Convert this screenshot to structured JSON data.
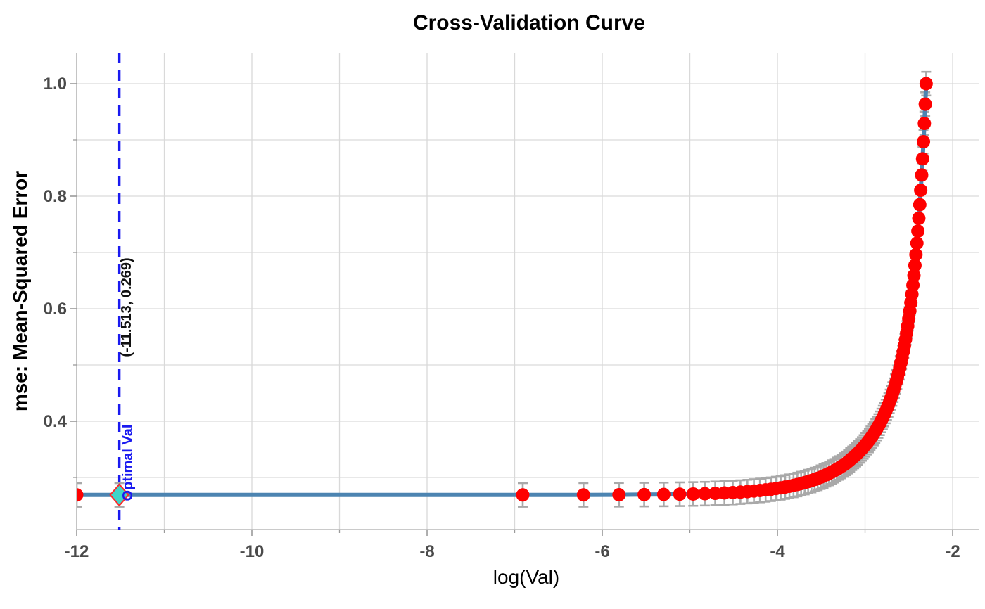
{
  "chart_data": {
    "type": "line",
    "title": "Cross-Validation Curve",
    "xlabel": "log(Val)",
    "ylabel": "mse: Mean-Squared Error",
    "grid": true,
    "legend": "none",
    "xlim": [
      -12.0,
      -1.695
    ],
    "ylim": [
      0.2075,
      1.055
    ],
    "x_ticks_major": [
      -12,
      -10,
      -8,
      -6,
      -4,
      -2
    ],
    "x_ticks_minor": [
      -11,
      -9,
      -7,
      -5,
      -3
    ],
    "y_ticks_major": [
      0.4,
      0.6,
      0.8,
      1.0
    ],
    "y_ticks_minor": [
      0.3,
      0.5,
      0.7,
      0.9
    ],
    "series": [
      {
        "name": "cv-mse-curve",
        "se": 0.021,
        "x": [
          -12.0,
          -11.513,
          -6.9078,
          -6.2146,
          -5.8091,
          -5.5215,
          -5.2983,
          -5.116,
          -4.9618,
          -4.8283,
          -4.7105,
          -4.6052,
          -4.5099,
          -4.4228,
          -4.3428,
          -4.2687,
          -4.1997,
          -4.1352,
          -4.0745,
          -4.0174,
          -3.9633,
          -3.912,
          -3.8632,
          -3.8167,
          -3.7723,
          -3.7297,
          -3.6889,
          -3.6497,
          -3.6119,
          -3.5756,
          -3.5405,
          -3.5066,
          -3.4738,
          -3.442,
          -3.4112,
          -3.3814,
          -3.3524,
          -3.3242,
          -3.2968,
          -3.2702,
          -3.2442,
          -3.2189,
          -3.1942,
          -3.1701,
          -3.1466,
          -3.1236,
          -3.1011,
          -3.0791,
          -3.0576,
          -3.0366,
          -3.0159,
          -2.9957,
          -2.9759,
          -2.9565,
          -2.9375,
          -2.9188,
          -2.9004,
          -2.8824,
          -2.8647,
          -2.8473,
          -2.8302,
          -2.8134,
          -2.7969,
          -2.7806,
          -2.7646,
          -2.7489,
          -2.7334,
          -2.7181,
          -2.7031,
          -2.6882,
          -2.6736,
          -2.6593,
          -2.6451,
          -2.6311,
          -2.6173,
          -2.6037,
          -2.5903,
          -2.577,
          -2.5639,
          -2.551,
          -2.5383,
          -2.5257,
          -2.5133,
          -2.501,
          -2.4889,
          -2.4769,
          -2.4651,
          -2.4534,
          -2.4418,
          -2.4304,
          -2.4191,
          -2.4079,
          -2.3969,
          -2.386,
          -2.3752,
          -2.3645,
          -2.3539,
          -2.3434,
          -2.333,
          -2.3228,
          -2.3126,
          -2.3026
        ],
        "y": [
          0.269,
          0.269,
          0.269,
          0.2691,
          0.2693,
          0.2696,
          0.2699,
          0.2703,
          0.2707,
          0.2712,
          0.2718,
          0.2725,
          0.2732,
          0.274,
          0.2749,
          0.2759,
          0.2769,
          0.278,
          0.2791,
          0.2803,
          0.2816,
          0.283,
          0.2844,
          0.2859,
          0.2875,
          0.2892,
          0.2909,
          0.2927,
          0.2945,
          0.2964,
          0.2984,
          0.3005,
          0.3026,
          0.3048,
          0.3071,
          0.3095,
          0.3119,
          0.3144,
          0.3169,
          0.3195,
          0.3222,
          0.325,
          0.3281,
          0.3312,
          0.3342,
          0.3373,
          0.3405,
          0.3438,
          0.3472,
          0.3507,
          0.3543,
          0.358,
          0.3618,
          0.3657,
          0.3697,
          0.3738,
          0.3781,
          0.3824,
          0.387,
          0.3916,
          0.3964,
          0.4014,
          0.4065,
          0.4119,
          0.4174,
          0.4231,
          0.429,
          0.4352,
          0.4416,
          0.4483,
          0.4552,
          0.4625,
          0.47,
          0.478,
          0.4862,
          0.4949,
          0.504,
          0.5136,
          0.5236,
          0.5341,
          0.5452,
          0.5569,
          0.5692,
          0.5822,
          0.5959,
          0.6104,
          0.6257,
          0.6419,
          0.659,
          0.6771,
          0.6962,
          0.7165,
          0.738,
          0.7608,
          0.7849,
          0.8105,
          0.8376,
          0.8664,
          0.8969,
          0.9293,
          0.9636,
          1.0
        ]
      }
    ],
    "optimal": {
      "x": -11.513,
      "y": 0.269,
      "coord_label": "(-11.513, 0.269)",
      "label": "Optimal Val"
    },
    "colors": {
      "line": "#4c84b1",
      "point": "#fe0000",
      "errorbar": "#a9a9a9",
      "optimal_line": "#1a1af0",
      "optimal_text": "#1a1af0",
      "optimal_marker_fill": "#40d5c8",
      "optimal_marker_edge": "#ff2a2a",
      "grid": "#d9d9d9",
      "spine": "#b8b8b8",
      "tick": "#9a9a9a",
      "tick_label": "#4a4a4a"
    }
  }
}
